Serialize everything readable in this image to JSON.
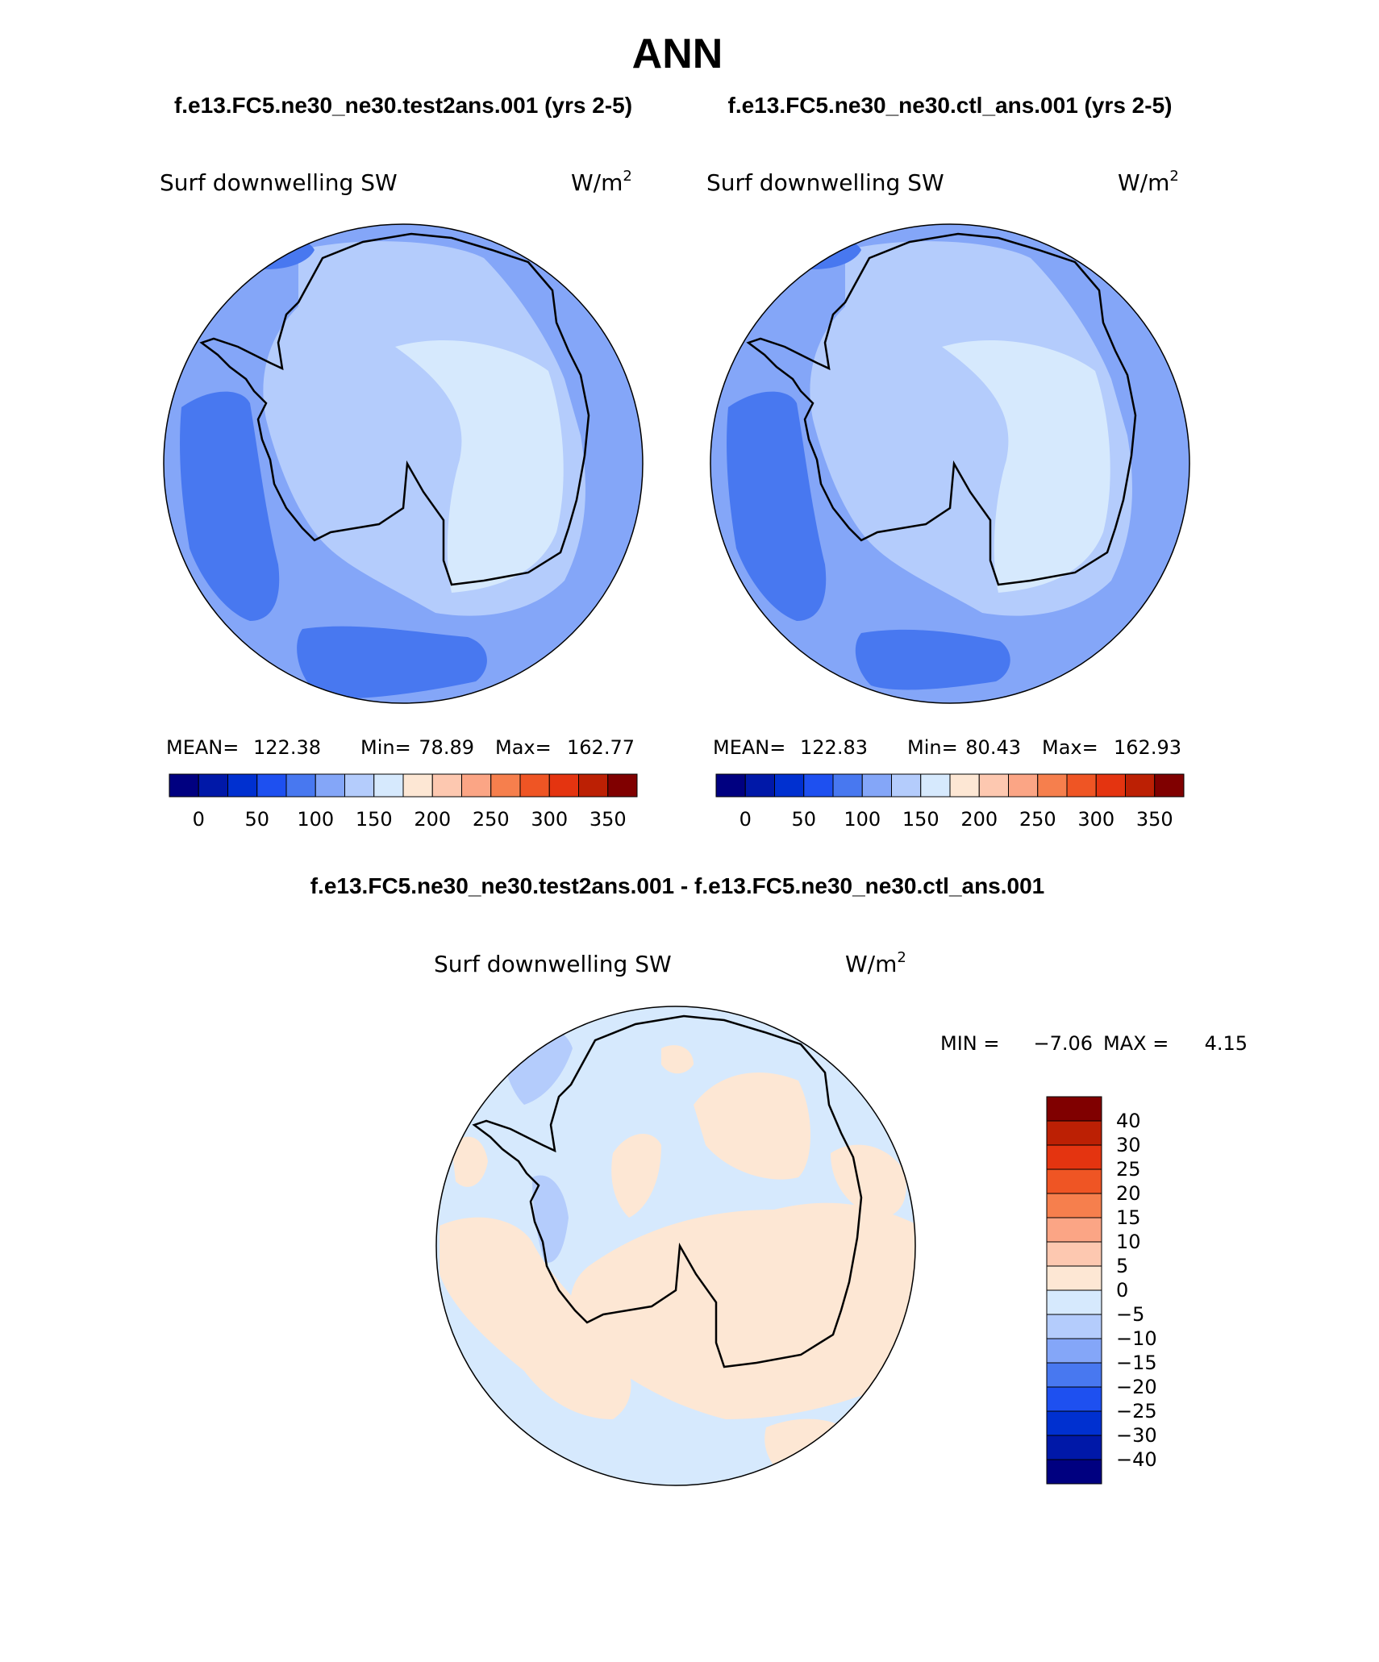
{
  "main_title": "ANN",
  "top_left_title": "f.e13.FC5.ne30_ne30.test2ans.001 (yrs 2-5)",
  "top_right_title": "f.e13.FC5.ne30_ne30.ctl_ans.001 (yrs 2-5)",
  "diff_title": "f.e13.FC5.ne30_ne30.test2ans.001 - f.e13.FC5.ne30_ne30.ctl_ans.001",
  "panels": {
    "left": {
      "variable": "Surf downwelling SW",
      "units_base": "W/m",
      "units_exp": "2",
      "stats": {
        "mean_label": "MEAN=",
        "mean": "122.38",
        "min_label": "Min=",
        "min": "78.89",
        "max_label": "Max=",
        "max": "162.77"
      }
    },
    "right": {
      "variable": "Surf downwelling SW",
      "units_base": "W/m",
      "units_exp": "2",
      "stats": {
        "mean_label": "MEAN=",
        "mean": "122.83",
        "min_label": "Min=",
        "min": "80.43",
        "max_label": "Max=",
        "max": "162.93"
      }
    },
    "diff": {
      "variable": "Surf downwelling SW",
      "units_base": "W/m",
      "units_exp": "2",
      "stats": {
        "min_label": "MIN =",
        "min": "−7.06",
        "max_label": "MAX =",
        "max": "4.15"
      }
    }
  },
  "colorbar_abs": {
    "colors": [
      "#000080",
      "#0018a8",
      "#0030d0",
      "#1e50f0",
      "#4878f0",
      "#84a6f8",
      "#b4ccfc",
      "#d6e9fd",
      "#fde7d4",
      "#fdc8b0",
      "#fba585",
      "#f67f4d",
      "#ef5524",
      "#e43410",
      "#bc2004",
      "#800000"
    ],
    "labels": [
      "0",
      "50",
      "100",
      "150",
      "200",
      "250",
      "300",
      "350"
    ]
  },
  "colorbar_diff": {
    "colors": [
      "#800000",
      "#bc2004",
      "#e43410",
      "#ef5524",
      "#f67f4d",
      "#fba585",
      "#fdc8b0",
      "#fde7d4",
      "#d6e9fd",
      "#b4ccfc",
      "#84a6f8",
      "#4878f0",
      "#1e50f0",
      "#0030d0",
      "#0018a8",
      "#000080"
    ],
    "labels": [
      "40",
      "30",
      "25",
      "20",
      "15",
      "10",
      "5",
      "0",
      "−5",
      "−10",
      "−15",
      "−20",
      "−25",
      "−30",
      "−40"
    ]
  }
}
